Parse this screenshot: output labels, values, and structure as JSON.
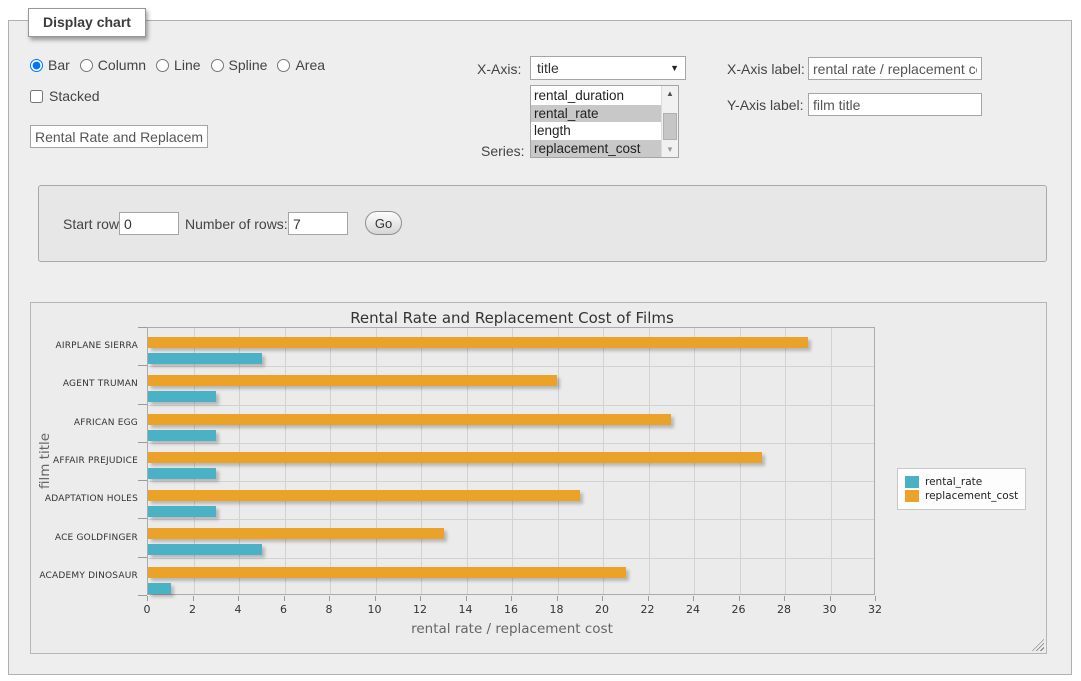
{
  "panel": {
    "tab_label": "Display chart"
  },
  "controls": {
    "chart_types": [
      {
        "label": "Bar",
        "selected": true
      },
      {
        "label": "Column",
        "selected": false
      },
      {
        "label": "Line",
        "selected": false
      },
      {
        "label": "Spline",
        "selected": false
      },
      {
        "label": "Area",
        "selected": false
      }
    ],
    "stacked_label": "Stacked",
    "stacked_checked": false,
    "chart_title_input_value": "Rental Rate and Replacement Cost of Films",
    "x_axis_label_text": "X-Axis:",
    "x_axis_selected": "title",
    "series_label_text": "Series:",
    "series_options": [
      {
        "label": "rental_duration",
        "selected": false
      },
      {
        "label": "rental_rate",
        "selected": true
      },
      {
        "label": "length",
        "selected": false
      },
      {
        "label": "replacement_cost",
        "selected": true
      }
    ],
    "x_axis_label_field": {
      "label": "X-Axis label:",
      "value": "rental rate / replacement cost"
    },
    "y_axis_label_field": {
      "label": "Y-Axis label:",
      "value": "film title"
    }
  },
  "query_panel": {
    "start_row_label": "Start row:",
    "start_row_value": "0",
    "num_rows_label": "Number of rows:",
    "num_rows_value": "7",
    "go_label": "Go"
  },
  "chart_data": {
    "type": "bar",
    "orientation": "horizontal",
    "title": "Rental Rate and Replacement Cost of Films",
    "xlabel": "rental rate / replacement cost",
    "ylabel": "film title",
    "categories_top_to_bottom": [
      "AIRPLANE SIERRA",
      "AGENT TRUMAN",
      "AFRICAN EGG",
      "AFFAIR PREJUDICE",
      "ADAPTATION HOLES",
      "ACE GOLDFINGER",
      "ACADEMY DINOSAUR"
    ],
    "series": [
      {
        "name": "rental_rate",
        "color": "#4bb2c5",
        "values": [
          4.99,
          2.99,
          2.99,
          2.99,
          2.99,
          4.99,
          0.99
        ]
      },
      {
        "name": "replacement_cost",
        "color": "#EAA228",
        "values": [
          28.99,
          17.99,
          22.99,
          26.99,
          18.99,
          12.99,
          20.99
        ]
      }
    ],
    "xlim": [
      0,
      32
    ],
    "x_tick_step": 2,
    "grid": true,
    "legend_position": "right",
    "bar_order_in_group_top_to_bottom": [
      "replacement_cost",
      "rental_rate"
    ]
  }
}
